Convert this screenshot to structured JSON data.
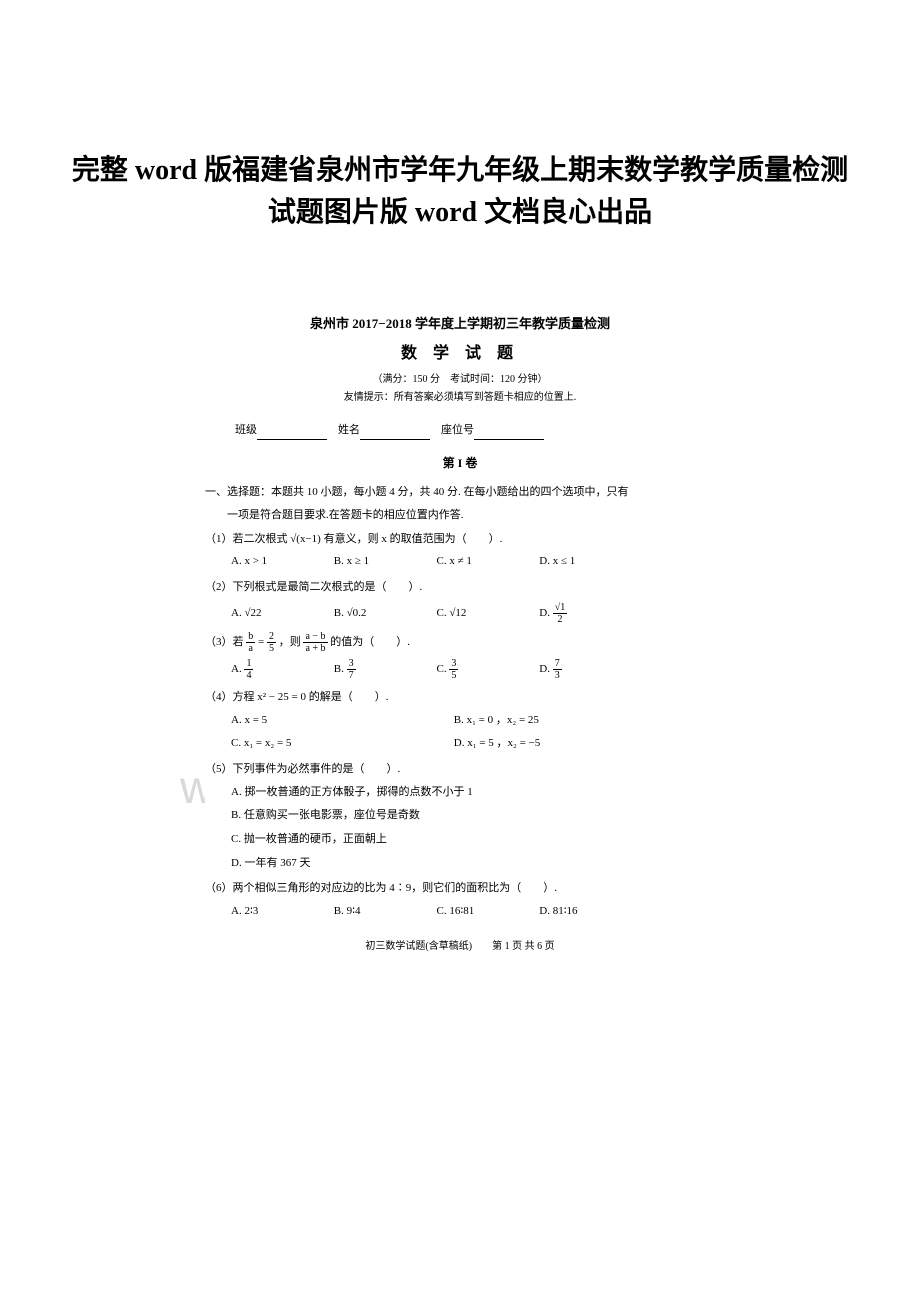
{
  "page_title": "完整 word 版福建省泉州市学年九年级上期末数学教学质量检测试题图片版 word 文档良心出品",
  "watermark": "www.bdocx.com",
  "exam": {
    "header": "泉州市 2017−2018 学年度上学期初三年教学质量检测",
    "title": "数 学 试 题",
    "sub": "（满分：150 分　考试时间：120 分钟）",
    "tip": "友情提示：所有答案必须填写到答题卡相应的位置上.",
    "fill_class": "班级",
    "fill_name": "姓名",
    "fill_seat": "座位号",
    "section1": "第 I 卷",
    "instr1": "一、选择题：本题共 10 小题，每小题 4 分，共 40 分. 在每小题给出的四个选项中，只有",
    "instr2": "一项是符合题目要求.在答题卡的相应位置内作答.",
    "q1": "（1）若二次根式 √(x−1) 有意义，则 x 的取值范围为（　　）.",
    "q1a": "A.  x > 1",
    "q1b": "B.  x ≥ 1",
    "q1c": "C.  x ≠ 1",
    "q1d": "D.  x ≤ 1",
    "q2": "（2）下列根式是最简二次根式的是（　　）.",
    "q2a": "A.  √22",
    "q2b": "B.  √0.2",
    "q2c": "C.  √12",
    "q2d_pre": "D.  ",
    "q3_pre": "（3）若 ",
    "q3_mid": " ，则 ",
    "q3_post": " 的值为（　　）.",
    "q3a_pre": "A.  ",
    "q3b_pre": "B.  ",
    "q3c_pre": "C.  ",
    "q3d_pre": "D.  ",
    "q4": "（4）方程 x² − 25 = 0 的解是（　　）.",
    "q4a": "A.  x = 5",
    "q4b": "B.  x₁ = 0 ，x₂ = 25",
    "q4c": "C.  x₁ = x₂ = 5",
    "q4d": "D.  x₁ = 5 ，x₂ = −5",
    "q5": "（5）下列事件为必然事件的是（　　）.",
    "q5a": "A. 掷一枚普通的正方体骰子，掷得的点数不小于 1",
    "q5b": "B. 任意购买一张电影票，座位号是奇数",
    "q5c": "C. 抛一枚普通的硬币，正面朝上",
    "q5d": "D.  一年有 367 天",
    "q6": "（6）两个相似三角形的对应边的比为 4∶9，则它们的面积比为（　　）.",
    "q6a": "A.  2∶3",
    "q6b": "B.  9∶4",
    "q6c": "C.  16∶81",
    "q6d": "D.  81∶16",
    "footer": "初三数学试题(含草稿纸)　　第 1 页  共 6 页"
  }
}
